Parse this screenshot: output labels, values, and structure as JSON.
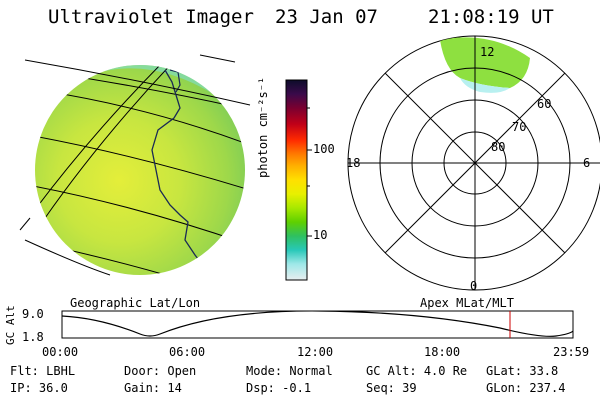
{
  "header": {
    "instrument": "Ultraviolet Imager",
    "date": "23 Jan 07",
    "time": "21:08:19 UT"
  },
  "colorbar": {
    "unit_label": "photon cm⁻²s⁻¹",
    "ticks": [
      "100",
      "10"
    ],
    "colors": [
      "#0d0d2b",
      "#3a0a4a",
      "#7a0030",
      "#c00018",
      "#ff2a00",
      "#ff7a00",
      "#ffb000",
      "#ffe000",
      "#e8f000",
      "#a8e800",
      "#5fd000",
      "#2fc060",
      "#28c8b8",
      "#9ee8e8",
      "#e8eef0"
    ]
  },
  "polar": {
    "lat_labels": [
      "60",
      "70",
      "80"
    ],
    "mlt_labels": {
      "top": "12",
      "left": "18",
      "right": "6",
      "bottom": "0"
    }
  },
  "map_labels": {
    "left": "Geographic Lat/Lon",
    "right": "Apex MLat/MLT"
  },
  "altitude_plot": {
    "axis_label": "GC Alt",
    "y_ticks": [
      "9.0",
      "1.8"
    ],
    "x_ticks": [
      "00:00",
      "06:00",
      "12:00",
      "18:00",
      "23:59"
    ]
  },
  "info": {
    "row1": [
      {
        "label": "Flt:",
        "value": "LBHL"
      },
      {
        "label": "Door:",
        "value": "Open"
      },
      {
        "label": "Mode:",
        "value": "Normal"
      },
      {
        "label": "GC Alt:",
        "value": "4.0 Re"
      },
      {
        "label": "GLat:",
        "value": "33.8"
      }
    ],
    "row2": [
      {
        "label": "IP:",
        "value": "36.0"
      },
      {
        "label": "Gain:",
        "value": "14"
      },
      {
        "label": "Dsp:",
        "value": "-0.1"
      },
      {
        "label": "Seq:",
        "value": "39"
      },
      {
        "label": "GLon:",
        "value": "237.4"
      }
    ]
  }
}
